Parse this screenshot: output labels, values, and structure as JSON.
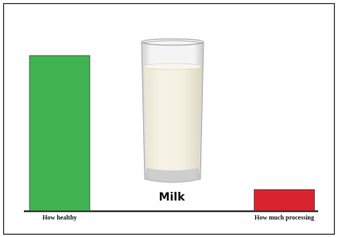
{
  "chart_data": {
    "type": "bar",
    "title": "Milk",
    "categories": [
      "How healthy",
      "How much processing"
    ],
    "values": [
      80,
      11
    ],
    "colors": [
      "#3fb34f",
      "#d9232e"
    ]
  }
}
